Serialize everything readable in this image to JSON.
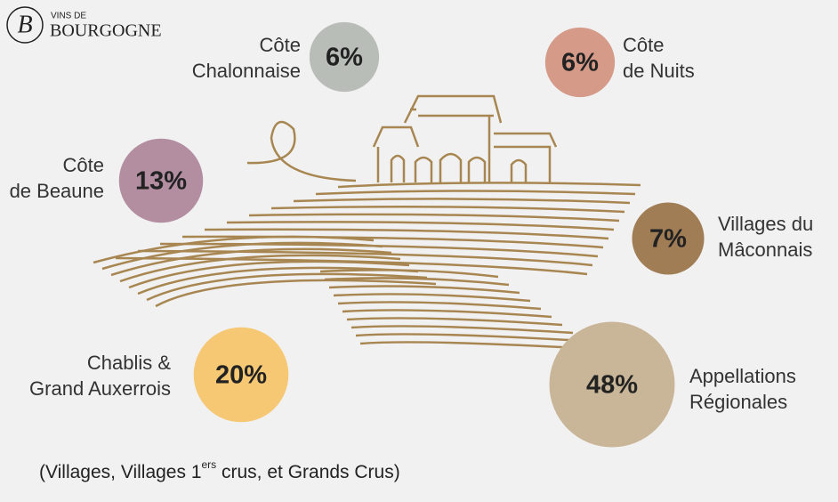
{
  "logo": {
    "mark": "B",
    "top": "VINS DE",
    "bottom": "BOURGOGNE"
  },
  "chart_data": {
    "type": "bubble",
    "categories": [
      [
        "Côte",
        "Chalonnaise"
      ],
      [
        "Côte",
        "de Nuits"
      ],
      [
        "Côte",
        "de Beaune"
      ],
      [
        "Villages du",
        "Mâconnais"
      ],
      [
        "Chablis &",
        "Grand Auxerrois"
      ],
      [
        "Appellations",
        "Régionales"
      ]
    ],
    "values": [
      6,
      6,
      13,
      7,
      20,
      48
    ],
    "value_labels": [
      "6%",
      "6%",
      "13%",
      "7%",
      "20%",
      "48%"
    ],
    "colors": [
      "#b9bdb7",
      "#d59a88",
      "#b28ea0",
      "#a07d55",
      "#f6c874",
      "#c9b597"
    ],
    "note": [
      "(Villages, Villages 1",
      "ers",
      " crus, et Grands Crus)"
    ]
  }
}
